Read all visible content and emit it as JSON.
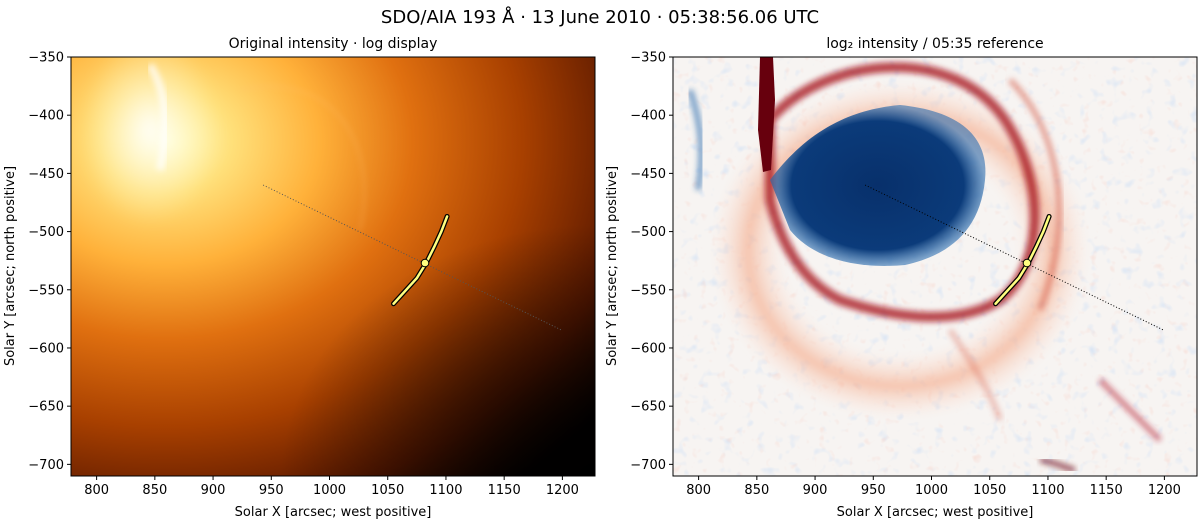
{
  "figure": {
    "suptitle": "SDO/AIA 193 Å · 13 June 2010 · 05:38:56.06 UTC"
  },
  "chart_data": [
    {
      "type": "heatmap",
      "title": "Original intensity · log display",
      "xlabel": "Solar X [arcsec; west positive]",
      "ylabel": "Solar Y [arcsec; north positive]",
      "xlim": [
        778,
        1228
      ],
      "ylim": [
        -710,
        -350
      ],
      "xticks": [
        800,
        850,
        900,
        950,
        1000,
        1050,
        1100,
        1150,
        1200
      ],
      "yticks": [
        -350,
        -400,
        -450,
        -500,
        -550,
        -600,
        -650,
        -700
      ],
      "colormap": "afmhot",
      "grid": false,
      "overlays": {
        "trace_line": {
          "x": [
            943,
            1200
          ],
          "y": [
            -460,
            -585
          ],
          "style": "dotted",
          "color": "#555555"
        },
        "front_arc": {
          "x": [
            1055,
            1065,
            1075,
            1083,
            1090,
            1096,
            1101
          ],
          "y": [
            -562,
            -551,
            -540,
            -527,
            -513,
            -500,
            -487
          ],
          "color": "#ffff80",
          "edge": "#000000"
        },
        "marker": {
          "x": 1082,
          "y": -527,
          "color": "#ffff80"
        }
      }
    },
    {
      "type": "heatmap",
      "title": "log₂ intensity / 05:35 reference",
      "xlabel": "Solar X [arcsec; west positive]",
      "ylabel": "Solar Y [arcsec; north positive]",
      "xlim": [
        778,
        1228
      ],
      "ylim": [
        -710,
        -350
      ],
      "xticks": [
        800,
        850,
        900,
        950,
        1000,
        1050,
        1100,
        1150,
        1200
      ],
      "yticks": [
        -350,
        -400,
        -450,
        -500,
        -550,
        -600,
        -650,
        -700
      ],
      "colormap": "RdBu_r",
      "grid": false,
      "overlays": {
        "trace_line": {
          "x": [
            943,
            1200
          ],
          "y": [
            -460,
            -585
          ],
          "style": "dotted",
          "color": "#000000"
        },
        "front_arc": {
          "x": [
            1055,
            1065,
            1075,
            1083,
            1090,
            1096,
            1101
          ],
          "y": [
            -562,
            -551,
            -540,
            -527,
            -513,
            -500,
            -487
          ],
          "color": "#ffff80",
          "edge": "#000000"
        },
        "marker": {
          "x": 1082,
          "y": -527,
          "color": "#ffff80"
        }
      }
    }
  ]
}
